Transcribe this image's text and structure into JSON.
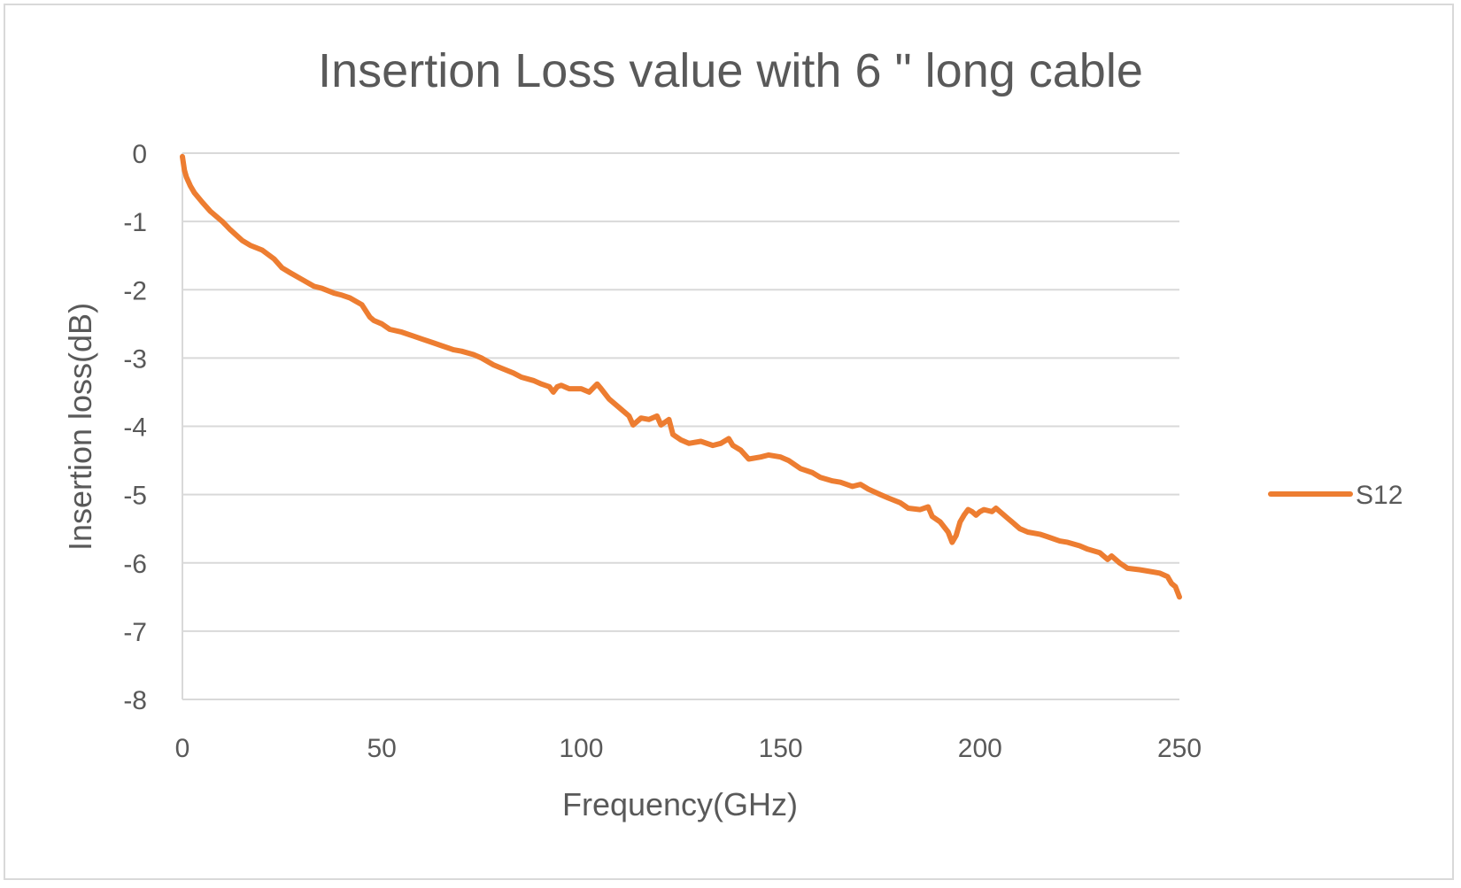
{
  "chart_data": {
    "type": "line",
    "title": "Insertion Loss value with 6 \" long cable",
    "xlabel": "Frequency(GHz)",
    "ylabel": "Insertion loss(dB)",
    "xlim": [
      0,
      250
    ],
    "ylim": [
      -8,
      0
    ],
    "xticks": [
      0,
      50,
      100,
      150,
      200,
      250
    ],
    "yticks": [
      0,
      -1,
      -2,
      -3,
      -4,
      -5,
      -6,
      -7,
      -8
    ],
    "x_tick_labels": [
      "0",
      "50",
      "100",
      "150",
      "200",
      "250"
    ],
    "y_tick_labels": [
      "0",
      "-1",
      "-2",
      "-3",
      "-4",
      "-5",
      "-6",
      "-7",
      "-8"
    ],
    "grid": "horizontal",
    "legend_position": "right",
    "series": [
      {
        "name": "S12",
        "color": "#ed7d31",
        "x": [
          0,
          0.5,
          1,
          2,
          3,
          5,
          7,
          10,
          12,
          15,
          17,
          20,
          23,
          25,
          27,
          30,
          33,
          35,
          38,
          40,
          42,
          45,
          47,
          48,
          50,
          52,
          55,
          58,
          60,
          63,
          65,
          68,
          70,
          73,
          75,
          78,
          80,
          83,
          85,
          88,
          90,
          92,
          93,
          94,
          95,
          97,
          100,
          102,
          104,
          105,
          107,
          110,
          112,
          113,
          115,
          117,
          119,
          120,
          122,
          123,
          125,
          127,
          130,
          133,
          135,
          137,
          138,
          140,
          142,
          145,
          147,
          150,
          152,
          155,
          158,
          160,
          163,
          165,
          168,
          170,
          172,
          175,
          177,
          180,
          182,
          185,
          187,
          188,
          190,
          192,
          193,
          194,
          195,
          196,
          197,
          198,
          199,
          200,
          201,
          203,
          204,
          205,
          207,
          209,
          210,
          212,
          215,
          217,
          220,
          222,
          225,
          227,
          230,
          232,
          233,
          235,
          237,
          240,
          242,
          245,
          247,
          248,
          249,
          250
        ],
        "values": [
          -0.05,
          -0.25,
          -0.35,
          -0.48,
          -0.58,
          -0.72,
          -0.85,
          -1.0,
          -1.12,
          -1.28,
          -1.35,
          -1.42,
          -1.55,
          -1.68,
          -1.75,
          -1.85,
          -1.95,
          -1.98,
          -2.05,
          -2.08,
          -2.12,
          -2.22,
          -2.4,
          -2.45,
          -2.5,
          -2.58,
          -2.62,
          -2.68,
          -2.72,
          -2.78,
          -2.82,
          -2.88,
          -2.9,
          -2.95,
          -3.0,
          -3.1,
          -3.15,
          -3.22,
          -3.28,
          -3.33,
          -3.38,
          -3.42,
          -3.5,
          -3.42,
          -3.4,
          -3.45,
          -3.45,
          -3.5,
          -3.38,
          -3.45,
          -3.6,
          -3.75,
          -3.85,
          -3.98,
          -3.88,
          -3.9,
          -3.85,
          -3.98,
          -3.9,
          -4.12,
          -4.2,
          -4.25,
          -4.22,
          -4.28,
          -4.25,
          -4.18,
          -4.28,
          -4.35,
          -4.48,
          -4.45,
          -4.42,
          -4.45,
          -4.5,
          -4.62,
          -4.68,
          -4.75,
          -4.8,
          -4.82,
          -4.88,
          -4.85,
          -4.92,
          -5.0,
          -5.05,
          -5.12,
          -5.2,
          -5.22,
          -5.18,
          -5.32,
          -5.4,
          -5.55,
          -5.7,
          -5.6,
          -5.4,
          -5.3,
          -5.22,
          -5.25,
          -5.3,
          -5.25,
          -5.22,
          -5.25,
          -5.2,
          -5.25,
          -5.35,
          -5.45,
          -5.5,
          -5.55,
          -5.58,
          -5.62,
          -5.68,
          -5.7,
          -5.75,
          -5.8,
          -5.85,
          -5.95,
          -5.9,
          -6.0,
          -6.08,
          -6.1,
          -6.12,
          -6.15,
          -6.2,
          -6.3,
          -6.35,
          -6.5
        ]
      }
    ]
  }
}
